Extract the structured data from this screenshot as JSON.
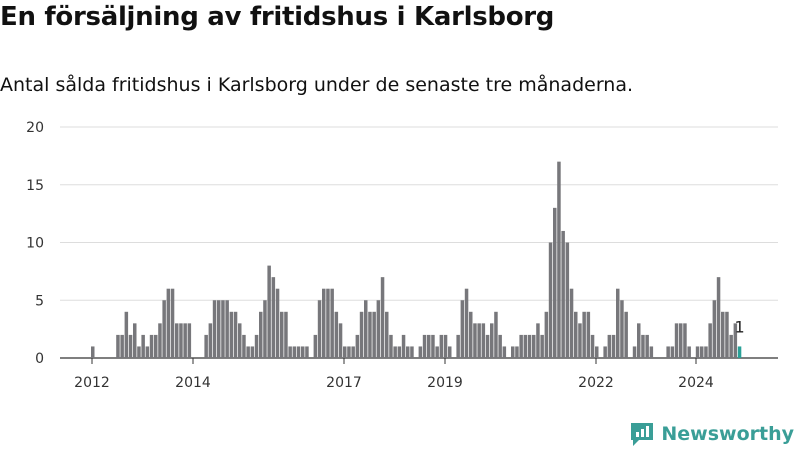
{
  "chart_data": {
    "type": "bar",
    "title": "En försäljning av fritidshus i Karlsborg",
    "subtitle": "Antal sålda fritidshus i Karlsborg under de senaste tre månaderna.",
    "ylim": [
      0,
      20
    ],
    "y_ticks": [
      "0",
      "5",
      "10",
      "15",
      "20"
    ],
    "x_tick_labels": [
      "2012",
      "2014",
      "2017",
      "2019",
      "2022",
      "2024"
    ],
    "grid": true,
    "series_color": "#77777b",
    "highlight_color": "#2aa198",
    "values": [
      1,
      0,
      0,
      0,
      0,
      0,
      2,
      2,
      4,
      2,
      3,
      1,
      2,
      1,
      2,
      2,
      3,
      5,
      6,
      6,
      3,
      3,
      3,
      3,
      0,
      0,
      0,
      2,
      3,
      5,
      5,
      5,
      5,
      4,
      4,
      3,
      2,
      1,
      1,
      2,
      4,
      5,
      8,
      7,
      6,
      4,
      4,
      1,
      1,
      1,
      1,
      1,
      0,
      2,
      5,
      6,
      6,
      6,
      4,
      3,
      1,
      1,
      1,
      2,
      4,
      5,
      4,
      4,
      5,
      7,
      4,
      2,
      1,
      1,
      2,
      1,
      1,
      0,
      1,
      2,
      2,
      2,
      1,
      2,
      2,
      1,
      0,
      2,
      5,
      6,
      4,
      3,
      3,
      3,
      2,
      3,
      4,
      2,
      1,
      0,
      1,
      1,
      2,
      2,
      2,
      2,
      3,
      2,
      4,
      10,
      13,
      17,
      11,
      10,
      6,
      4,
      3,
      4,
      4,
      2,
      1,
      0,
      1,
      2,
      2,
      6,
      5,
      4,
      0,
      1,
      3,
      2,
      2,
      1,
      0,
      0,
      0,
      1,
      1,
      3,
      3,
      3,
      1,
      0,
      1,
      1,
      1,
      3,
      5,
      7,
      4,
      4,
      2,
      3,
      1
    ],
    "last_value_label": "1"
  },
  "brand": {
    "logo_text": "Newsworthy",
    "logo_color": "#3a9e97"
  }
}
